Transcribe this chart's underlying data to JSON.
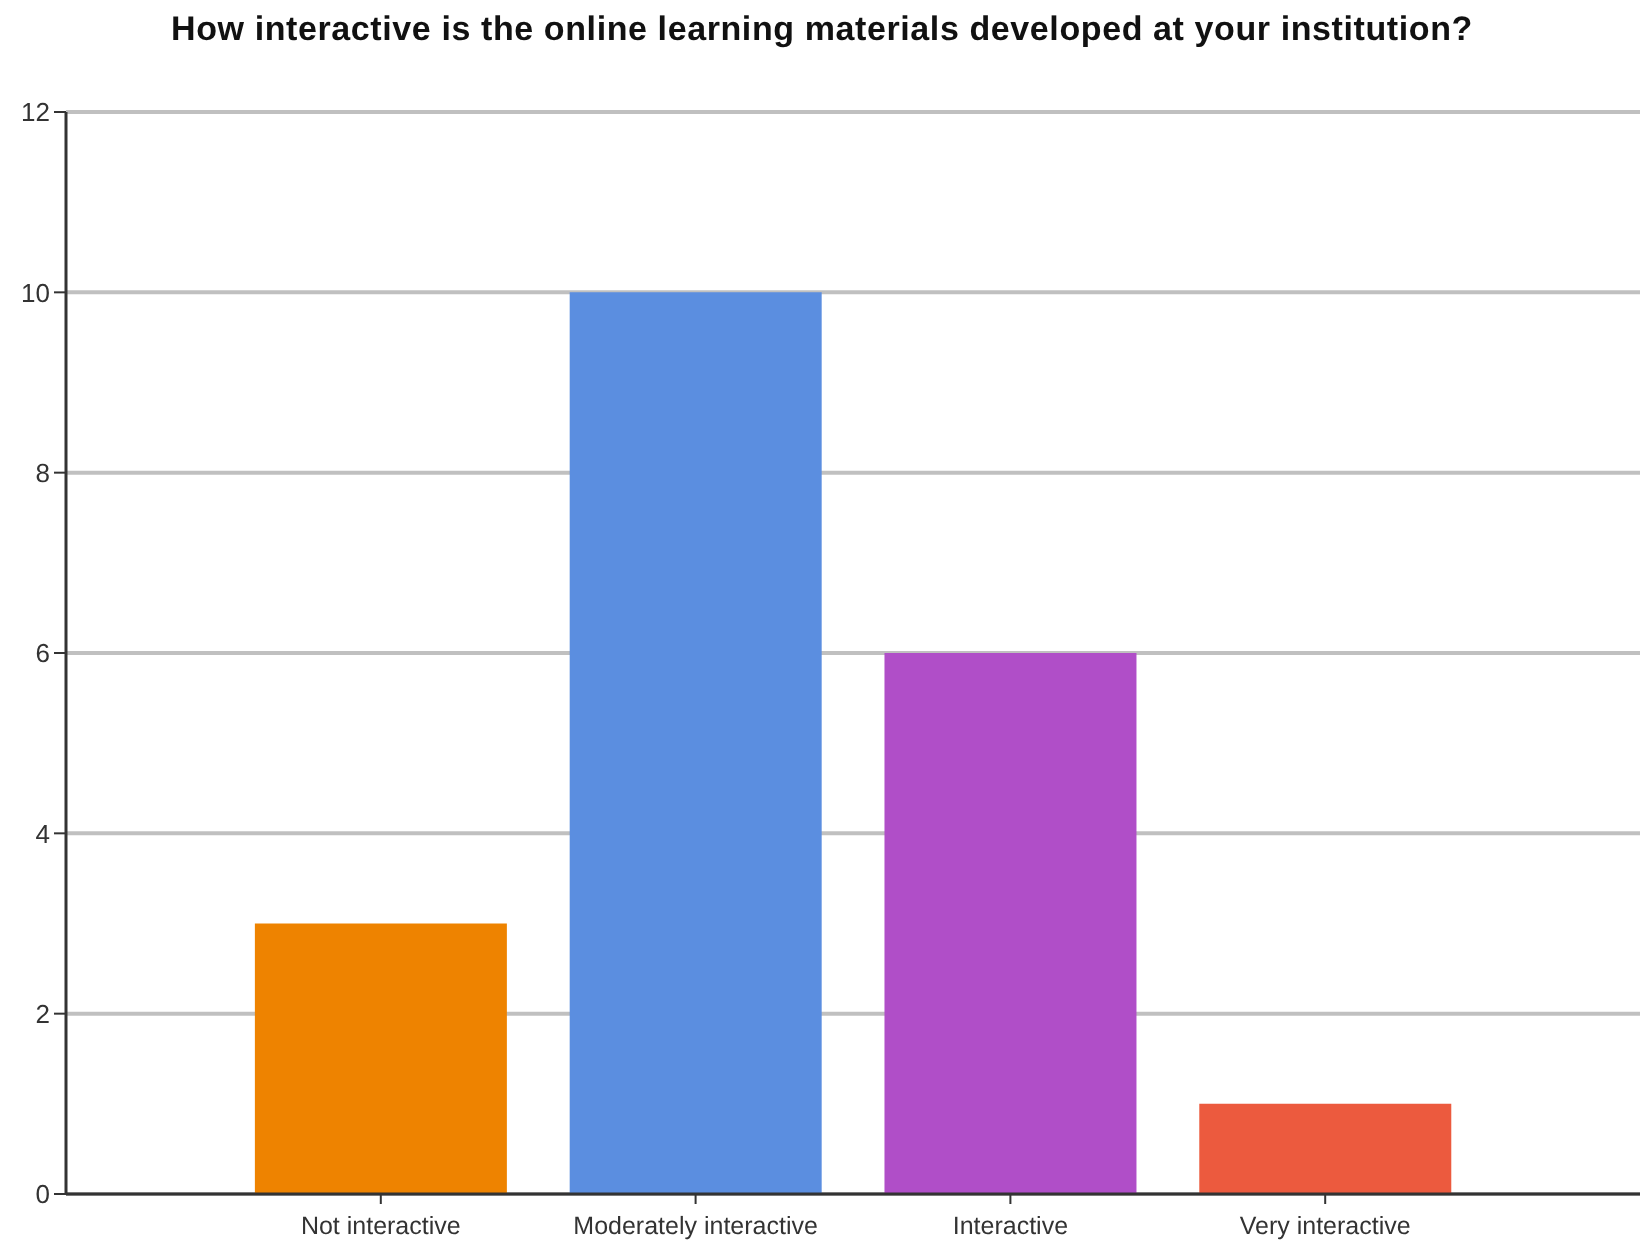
{
  "chart_data": {
    "type": "bar",
    "title": "How interactive is the online learning materials developed at your institution?",
    "categories": [
      "Not interactive",
      "Moderately interactive",
      "Interactive",
      "Very interactive"
    ],
    "values": [
      3,
      10,
      6,
      1
    ],
    "colors": [
      "#ee8300",
      "#5b8ee0",
      "#b04ec8",
      "#ec5a3e"
    ],
    "ylim": [
      0,
      12
    ],
    "yticks": [
      0,
      2,
      4,
      6,
      8,
      10,
      12
    ],
    "grid": "y"
  }
}
